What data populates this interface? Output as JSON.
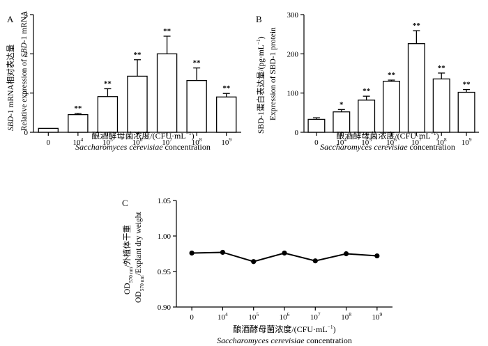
{
  "chart_data": [
    {
      "panel": "A",
      "type": "bar",
      "categories": [
        "0",
        "10^4",
        "10^5",
        "10^6",
        "10^7",
        "10^8",
        "10^9"
      ],
      "values": [
        0.1,
        0.45,
        0.91,
        1.43,
        2.0,
        1.32,
        0.9
      ],
      "errors": [
        0.0,
        0.03,
        0.2,
        0.42,
        0.45,
        0.32,
        0.09
      ],
      "significance": [
        "",
        "**",
        "**",
        "**",
        "**",
        "**",
        "**"
      ],
      "ylim": [
        0,
        3
      ],
      "yticks": [
        "0",
        "1",
        "2",
        "3"
      ],
      "ylabel_cn": "SBD-1 mRNA相对表达量",
      "ylabel_en": "Relative expression of SBD-1 mRNA",
      "xlabel_cn": "酿酒酵母菌浓度/(CFU·mL⁻¹)",
      "xlabel_en_italic": "Saccharomyces cerevisiae",
      "xlabel_en_suffix": " concentration"
    },
    {
      "panel": "B",
      "type": "bar",
      "categories": [
        "0",
        "10^4",
        "10^5",
        "10^6",
        "10^7",
        "10^8",
        "10^9"
      ],
      "values": [
        33,
        52,
        82,
        130,
        226,
        136,
        102
      ],
      "errors": [
        4,
        6,
        10,
        3,
        33,
        15,
        7
      ],
      "significance": [
        "",
        "*",
        "**",
        "**",
        "**",
        "**",
        "**"
      ],
      "ylim": [
        0,
        300
      ],
      "yticks": [
        "0",
        "100",
        "200",
        "300"
      ],
      "ylabel_cn": "SBD-1蛋白表达量/(pg·mL⁻¹)",
      "ylabel_en": "Expression of SBD-1 protein",
      "xlabel_cn": "酿酒酵母菌浓度/(CFU·mL⁻¹)",
      "xlabel_en_italic": "Saccharomyces cerevisiae",
      "xlabel_en_suffix": " concentration"
    },
    {
      "panel": "C",
      "type": "line",
      "categories": [
        "0",
        "10^4",
        "10^5",
        "10^6",
        "10^7",
        "10^8",
        "10^9"
      ],
      "values": [
        0.976,
        0.977,
        0.964,
        0.976,
        0.965,
        0.975,
        0.972
      ],
      "ylim": [
        0.9,
        1.05
      ],
      "yticks": [
        "0.90",
        "0.95",
        "1.00",
        "1.05"
      ],
      "ylabel_cn": "OD570 nm/外植体干重",
      "ylabel_en": "OD570 nm/Explant dry weight",
      "xlabel_cn": "酿酒酵母菌浓度/(CFU·mL⁻¹)",
      "xlabel_en_italic": "Saccharomyces cerevisiae",
      "xlabel_en_suffix": " concentration"
    }
  ],
  "labels": {
    "sbd_italic": "SBD",
    "mrna_a_suffix": "-1 mRNA相对表达量",
    "rel_expr_prefix": "Relative expression of ",
    "mrna_en_suffix": "-1 mRNA",
    "od_prefix": "OD",
    "od_sub": "570 nm",
    "c_cn_suffix": "/外植体干重",
    "c_en_suffix": "/Explant dry weight",
    "xlabel_cn_main": "酿酒酵母菌浓度/(CFU·mL",
    "xlabel_cn_sup": "−1",
    "xlabel_cn_close": ")",
    "b_ylabel_main": "SBD-1蛋白表达量/(pg·mL",
    "b_ylabel_sup": "−1",
    "b_ylabel_close": ")"
  }
}
